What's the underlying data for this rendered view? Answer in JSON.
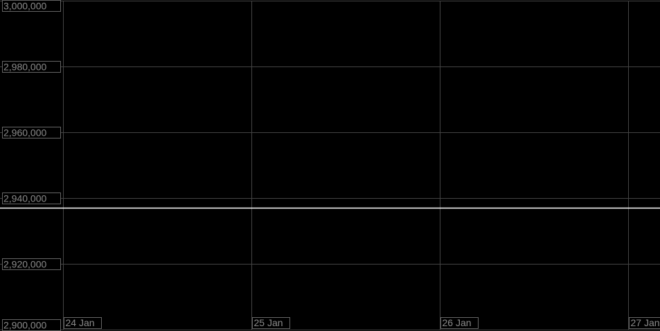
{
  "chart_data": {
    "type": "line",
    "title": "",
    "xlabel": "",
    "ylabel": "",
    "x_tick_labels": [
      "24 Jan",
      "25 Jan",
      "26 Jan",
      "27 Jan"
    ],
    "x_ticks": [
      0,
      1,
      2,
      3
    ],
    "xlim": [
      0,
      3.17
    ],
    "y_tick_labels": [
      "3,000,000",
      "2,980,000",
      "2,960,000",
      "2,940,000",
      "2,920,000",
      "2,900,000"
    ],
    "y_ticks": [
      3000000,
      2980000,
      2960000,
      2940000,
      2920000,
      2900000
    ],
    "ylim": [
      2900000,
      3000000
    ],
    "grid": true,
    "series": [
      {
        "x": [
          0,
          3.17
        ],
        "values": [
          2937000,
          2937000
        ],
        "color": "#ffffff"
      }
    ],
    "colors": {
      "background": "#000000",
      "grid": "#444444",
      "label": "#8a8a8a",
      "line": "#ffffff"
    }
  }
}
